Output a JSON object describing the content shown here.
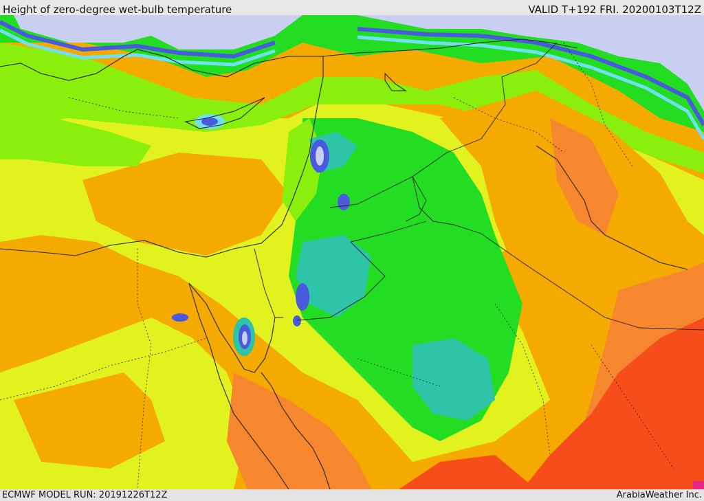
{
  "header": {
    "title": "Height of zero-degree wet-bulb temperature",
    "valid": "VALID T+192 FRI. 20200103T12Z"
  },
  "footer": {
    "model_run": "ECMWF MODEL RUN: 20191226T12Z",
    "credit": "ArabiaWeather Inc."
  },
  "map": {
    "region": "Eastern Mediterranean, Levant, Egypt, Iraq, northern Arabia",
    "field": "freezing wet-bulb level height",
    "color_scale": [
      "#c8cff0",
      "#7f8ee8",
      "#4a5adf",
      "#6fe0f0",
      "#2ec4a8",
      "#22dd22",
      "#8aef0c",
      "#e2f21e",
      "#f5aa00",
      "#f6872e",
      "#f74d1a",
      "#e8238a"
    ],
    "colors": {
      "background_land": "#f5aa00",
      "sea_ice_low": "#c8cff0",
      "border_lines": "#222222"
    }
  }
}
